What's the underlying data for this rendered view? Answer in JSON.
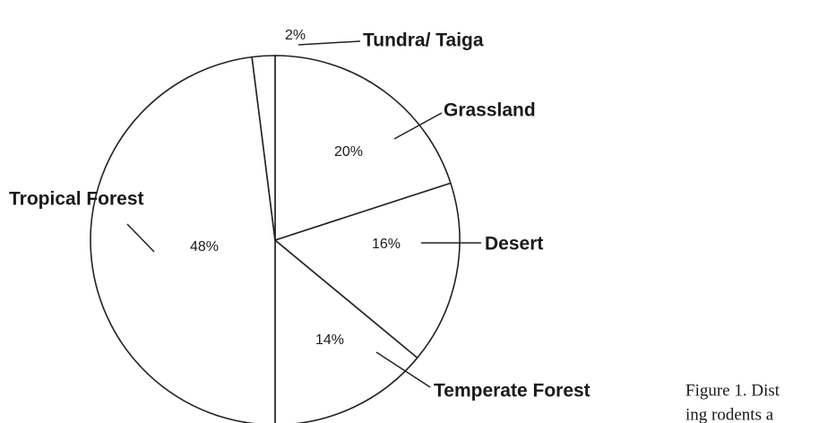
{
  "chart_data": {
    "type": "pie",
    "categories": [
      "Grassland",
      "Desert",
      "Temperate Forest",
      "Tropical Forest",
      "Tundra/ Taiga"
    ],
    "values": [
      20,
      16,
      14,
      48,
      2
    ],
    "value_labels": [
      "20%",
      "16%",
      "14%",
      "48%",
      "2%"
    ],
    "color": "#ffffff",
    "caption": [
      "Figure 1. Dist",
      "ing rodents a"
    ]
  }
}
